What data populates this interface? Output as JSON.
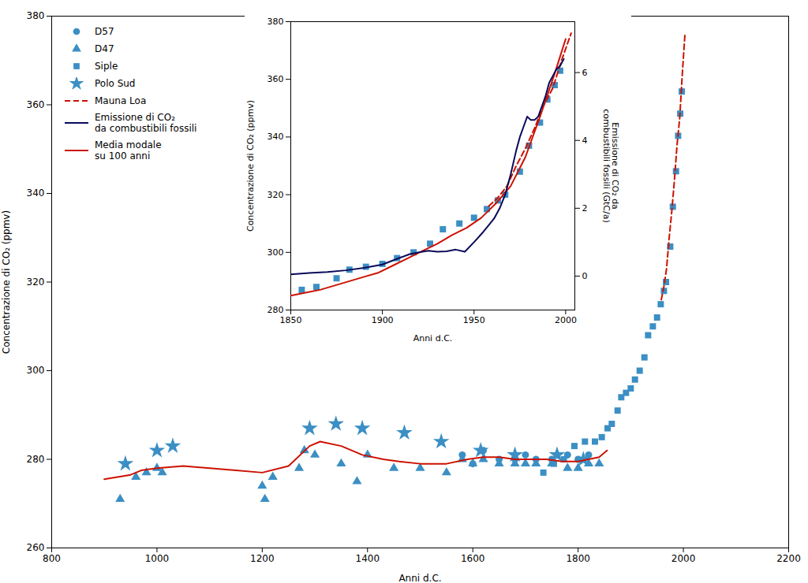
{
  "chart_data": [
    {
      "type": "scatter",
      "xlabel": "Anni d.C.",
      "ylabel": "Concentrazione di CO₂ (ppmv)",
      "xlim": [
        800,
        2200
      ],
      "xticks": [
        800,
        1000,
        1200,
        1400,
        1600,
        1800,
        2000,
        2200
      ],
      "ylim": [
        260,
        380
      ],
      "yticks": [
        260,
        280,
        300,
        320,
        340,
        360,
        380
      ],
      "grid": false,
      "legend": "upper left",
      "series": [
        {
          "name": "D57",
          "type": "scatter",
          "marker": "circle",
          "color": "#3b8fc4",
          "x": [
            1580,
            1600,
            1620,
            1650,
            1680,
            1700,
            1720,
            1750,
            1760,
            1780,
            1800,
            1820
          ],
          "values": [
            281,
            279,
            282,
            280,
            280,
            281,
            280,
            280,
            281,
            281,
            280,
            281
          ]
        },
        {
          "name": "D47",
          "type": "scatter",
          "marker": "triangle",
          "color": "#3b8fc4",
          "x": [
            930,
            960,
            980,
            1000,
            1010,
            1200,
            1205,
            1220,
            1270,
            1280,
            1300,
            1350,
            1380,
            1400,
            1450,
            1500,
            1550,
            1580,
            1600,
            1620,
            1650,
            1680,
            1700,
            1720,
            1750,
            1780,
            1800,
            1820,
            1840
          ],
          "values": [
            271,
            276,
            277,
            278,
            277,
            274,
            271,
            276,
            278,
            282,
            281,
            279,
            275,
            281,
            278,
            278,
            277,
            280,
            279,
            280,
            279,
            279,
            279,
            279,
            279,
            278,
            278,
            279,
            279
          ]
        },
        {
          "name": "Siple",
          "type": "scatter",
          "marker": "square",
          "color": "#3b8fc4",
          "x": [
            1734,
            1754,
            1773,
            1793,
            1813,
            1832,
            1845,
            1856,
            1864,
            1875,
            1882,
            1891,
            1900,
            1908,
            1917,
            1926,
            1933,
            1942,
            1950,
            1957,
            1963,
            1967,
            1975,
            1980,
            1986,
            1990,
            1994,
            1997
          ],
          "values": [
            277,
            279,
            280,
            283,
            284,
            284,
            285,
            287,
            288,
            291,
            294,
            295,
            296,
            298,
            300,
            303,
            308,
            310,
            312,
            315,
            318,
            320,
            328,
            337,
            345,
            353,
            358,
            363
          ]
        },
        {
          "name": "Polo Sud",
          "type": "scatter",
          "marker": "star",
          "color": "#3b8fc4",
          "x": [
            940,
            1000,
            1030,
            1290,
            1340,
            1390,
            1470,
            1540,
            1615,
            1680,
            1760,
            1810
          ],
          "values": [
            279,
            282,
            283,
            287,
            288,
            287,
            286,
            284,
            282,
            281,
            281,
            280
          ]
        },
        {
          "name": "Mauna Loa",
          "type": "line",
          "line_style": "dashed",
          "color": "#cc1100",
          "x": [
            1958,
            1963,
            1968,
            1973,
            1978,
            1983,
            1988,
            1993,
            1998,
            2003
          ],
          "values": [
            316,
            319,
            323,
            330,
            336,
            343,
            351,
            357,
            367,
            376
          ]
        },
        {
          "name": "Media modale\nsu 100 anni",
          "type": "line",
          "line_style": "solid",
          "color": "#cc1100",
          "x": [
            900,
            950,
            970,
            1000,
            1050,
            1100,
            1150,
            1200,
            1250,
            1290,
            1310,
            1350,
            1390,
            1430,
            1460,
            1500,
            1550,
            1590,
            1620,
            1650,
            1680,
            1710,
            1740,
            1770,
            1800,
            1820,
            1840,
            1855
          ],
          "values": [
            275.5,
            276.5,
            277.5,
            278,
            278.5,
            278,
            277.5,
            277,
            278.5,
            283,
            284,
            283,
            281,
            280,
            279.5,
            279,
            279,
            280,
            280.5,
            280.5,
            280,
            280,
            280,
            279.5,
            279.5,
            280,
            280.5,
            282
          ]
        }
      ]
    },
    {
      "type": "line",
      "xlabel": "Anni d.C.",
      "ylabel": "Concentrazione di CO₂ (ppmv)",
      "y2label": "Emissione di CO₂ da\ncombustibili fossili (GtC/a)",
      "xlim": [
        1850,
        2005
      ],
      "xticks": [
        1850,
        1900,
        1950,
        2000
      ],
      "ylim": [
        280,
        380
      ],
      "yticks": [
        280,
        300,
        320,
        340,
        360,
        380
      ],
      "y2lim": [
        -1.0,
        7.5
      ],
      "y2ticks": [
        0,
        2,
        4,
        6
      ],
      "grid": false,
      "series": [
        {
          "name": "Siple",
          "type": "scatter",
          "marker": "square",
          "color": "#3b8fc4",
          "x": [
            1856,
            1864,
            1875,
            1882,
            1891,
            1900,
            1908,
            1917,
            1926,
            1933,
            1942,
            1950,
            1957,
            1963,
            1967,
            1975,
            1980,
            1986,
            1990,
            1994,
            1997
          ],
          "values": [
            287,
            288,
            291,
            294,
            295,
            296,
            298,
            300,
            303,
            308,
            310,
            312,
            315,
            318,
            320,
            328,
            337,
            345,
            353,
            358,
            363
          ]
        },
        {
          "name": "Mauna Loa",
          "type": "line",
          "line_style": "dashed",
          "color": "#cc1100",
          "x": [
            1958,
            1963,
            1968,
            1973,
            1978,
            1983,
            1988,
            1993,
            1998,
            2003
          ],
          "values": [
            316,
            319,
            323,
            330,
            336,
            343,
            351,
            357,
            367,
            376
          ]
        },
        {
          "name": "Emissione di CO₂\nda combustibili fossili",
          "type": "line",
          "line_style": "solid",
          "color": "#0a0a5a",
          "axis": "y2",
          "x": [
            1850,
            1860,
            1870,
            1880,
            1890,
            1900,
            1910,
            1915,
            1920,
            1925,
            1930,
            1935,
            1940,
            1945,
            1950,
            1955,
            1958,
            1961,
            1964,
            1967,
            1970,
            1973,
            1975,
            1977,
            1979,
            1981,
            1983,
            1985,
            1987,
            1989,
            1991,
            1993,
            1995,
            1997,
            1999
          ],
          "values": [
            0.05,
            0.09,
            0.12,
            0.17,
            0.24,
            0.34,
            0.55,
            0.65,
            0.7,
            0.75,
            0.72,
            0.73,
            0.78,
            0.72,
            1.0,
            1.3,
            1.5,
            1.7,
            2.0,
            2.4,
            3.0,
            3.7,
            4.1,
            4.4,
            4.7,
            4.6,
            4.6,
            4.7,
            5.0,
            5.3,
            5.7,
            5.9,
            6.1,
            6.2,
            6.4
          ]
        },
        {
          "name": "Media modale\nsu 100 anni",
          "type": "line",
          "line_style": "solid",
          "color": "#cc1100",
          "x": [
            1850,
            1858,
            1866,
            1874,
            1882,
            1890,
            1898,
            1906,
            1914,
            1922,
            1930,
            1938,
            1946,
            1954,
            1962,
            1970,
            1978,
            1986,
            1994,
            2000
          ],
          "values": [
            285,
            286,
            287,
            288.5,
            290,
            291.5,
            293,
            295.5,
            298,
            300.5,
            303,
            306,
            308.5,
            312,
            317,
            323,
            333,
            347,
            362,
            374
          ]
        }
      ]
    }
  ]
}
